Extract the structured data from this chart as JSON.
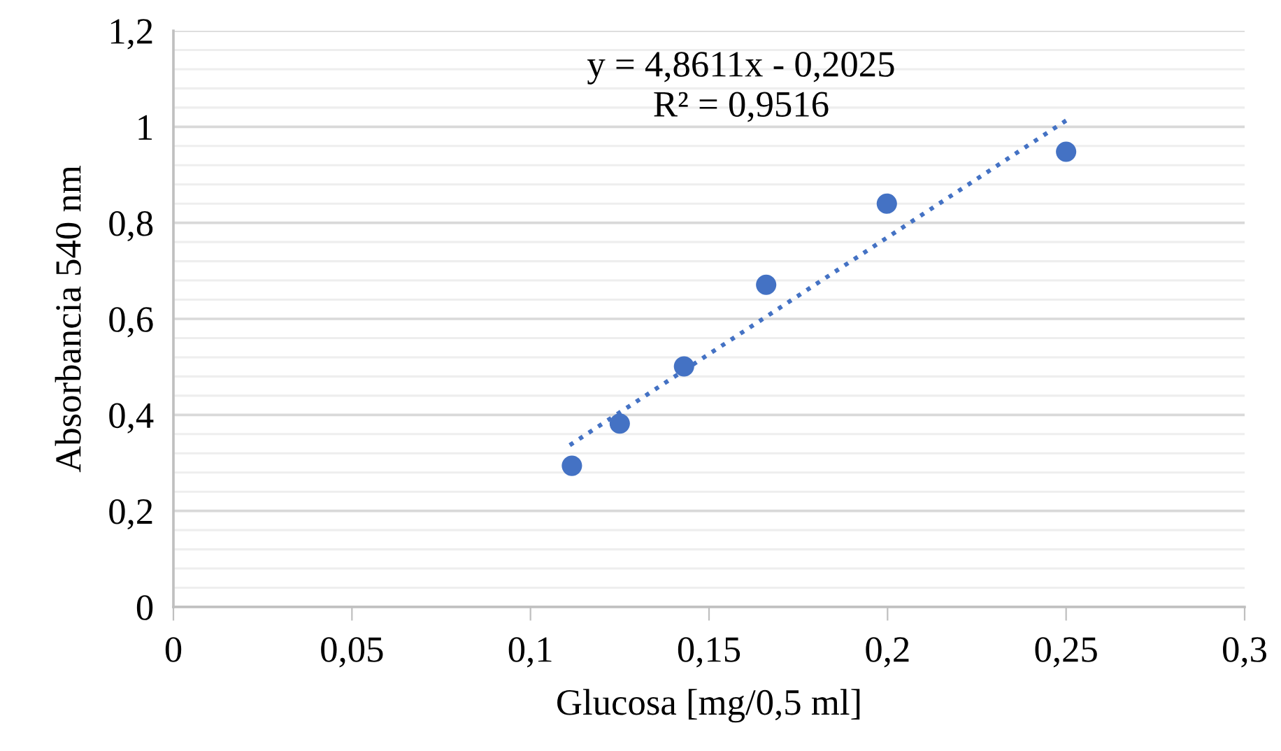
{
  "chart_data": {
    "type": "scatter",
    "xlabel": "Glucosa [mg/0,5 ml]",
    "ylabel": "Absorbancia 540 nm",
    "annotations": [
      "y = 4,8611x - 0,2025",
      "R² = 0,9516"
    ],
    "series": [
      {
        "color": "#4472c4",
        "marker": "circle",
        "x": [
          0.1116,
          0.125,
          0.143,
          0.166,
          0.1998,
          0.25
        ],
        "values": [
          0.294,
          0.382,
          0.501,
          0.671,
          0.84,
          0.948
        ]
      },
      {
        "type": "line",
        "color": "#4472c4",
        "line_style": "dotted",
        "marker": "none",
        "x": [
          0.111,
          0.25
        ],
        "values": [
          0.337,
          1.013
        ]
      }
    ],
    "xlim": [
      0,
      0.3
    ],
    "xticks": [
      0,
      {
        "value": 0.05,
        "label": "0,05"
      },
      {
        "value": 0.1,
        "label": "0,1"
      },
      {
        "value": 0.15,
        "label": "0,15"
      },
      {
        "value": 0.2,
        "label": "0,2"
      },
      {
        "value": 0.25,
        "label": "0,25"
      },
      {
        "value": 0.3,
        "label": "0,3"
      }
    ],
    "ylim": [
      0,
      1.2
    ],
    "yticks": [
      0,
      {
        "value": 0.04,
        "label": null
      },
      {
        "value": 0.08,
        "label": null
      },
      {
        "value": 0.12,
        "label": null
      },
      {
        "value": 0.16,
        "label": null
      },
      {
        "value": 0.2,
        "label": "0,2"
      },
      {
        "value": 0.24,
        "label": null
      },
      {
        "value": 0.28,
        "label": null
      },
      {
        "value": 0.32,
        "label": null
      },
      {
        "value": 0.36,
        "label": null
      },
      {
        "value": 0.4,
        "label": "0,4"
      },
      {
        "value": 0.44,
        "label": null
      },
      {
        "value": 0.48,
        "label": null
      },
      {
        "value": 0.52,
        "label": null
      },
      {
        "value": 0.56,
        "label": null
      },
      {
        "value": 0.6,
        "label": "0,6"
      },
      {
        "value": 0.64,
        "label": null
      },
      {
        "value": 0.68,
        "label": null
      },
      {
        "value": 0.72,
        "label": null
      },
      {
        "value": 0.76,
        "label": null
      },
      {
        "value": 0.8,
        "label": "0,8"
      },
      {
        "value": 0.84,
        "label": null
      },
      {
        "value": 0.88,
        "label": null
      },
      {
        "value": 0.92,
        "label": null
      },
      {
        "value": 0.96,
        "label": null
      },
      1,
      {
        "value": 1.04,
        "label": null
      },
      {
        "value": 1.08,
        "label": null
      },
      {
        "value": 1.12,
        "label": null
      },
      {
        "value": 1.16,
        "label": null
      },
      {
        "value": 1.2,
        "label": "1,2"
      }
    ],
    "grid": "y"
  }
}
